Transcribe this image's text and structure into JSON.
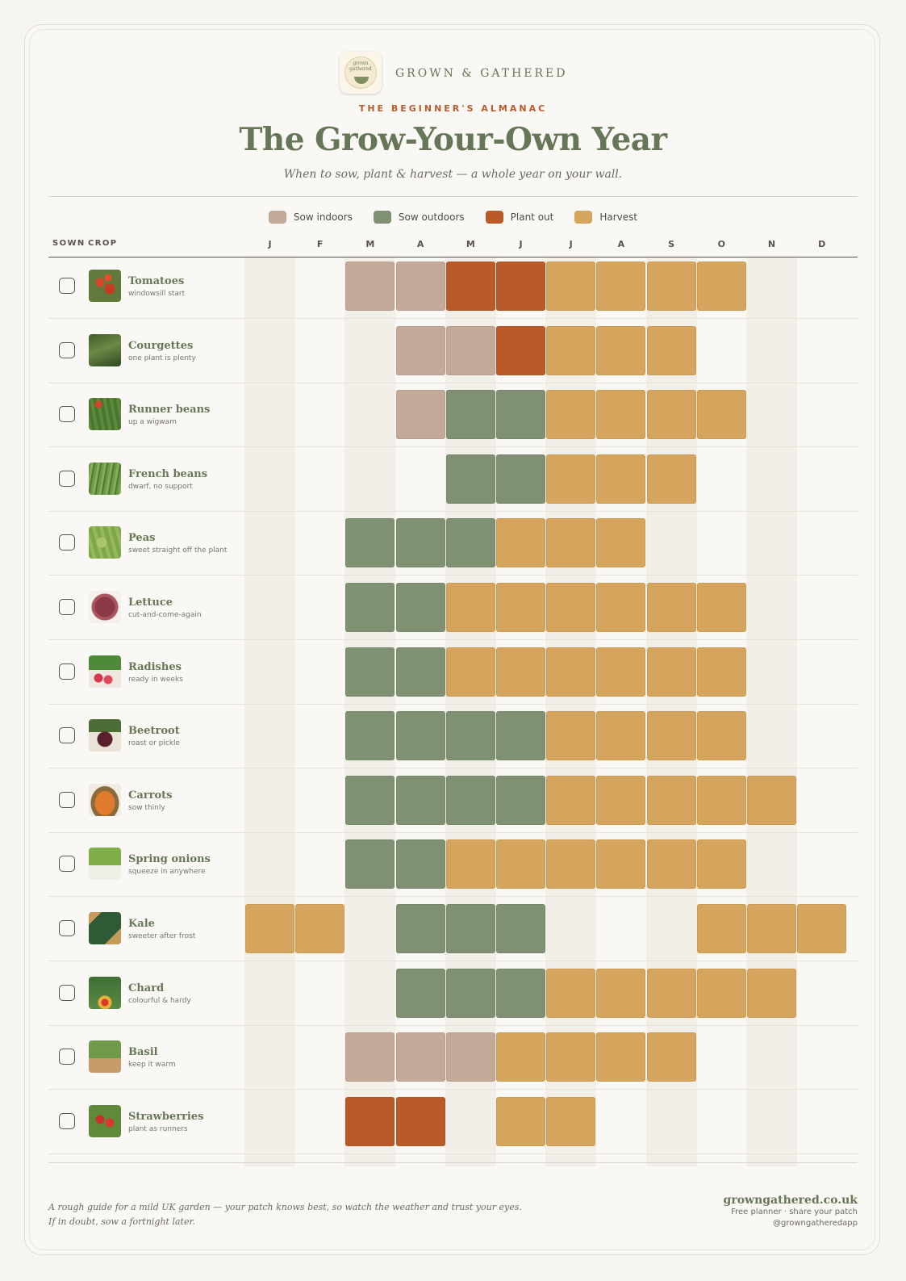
{
  "brand": {
    "name": "GROWN & GATHERED",
    "logo_text": "grown gathered",
    "logo_icon": "basket-icon"
  },
  "kicker": "THE BEGINNER'S ALMANAC",
  "title": "The Grow-Your-Own Year",
  "subtitle": "When to sow, plant & harvest — a whole year on your wall.",
  "legend": [
    {
      "key": "si",
      "label": "Sow indoors",
      "color": "#c4a898"
    },
    {
      "key": "so",
      "label": "Sow outdoors",
      "color": "#7f9172"
    },
    {
      "key": "po",
      "label": "Plant out",
      "color": "#bb5a29"
    },
    {
      "key": "h",
      "label": "Harvest",
      "color": "#d6a55d"
    }
  ],
  "columns": {
    "sown": "SOWN",
    "crop": "CROP"
  },
  "months": [
    "J",
    "F",
    "M",
    "A",
    "M",
    "J",
    "J",
    "A",
    "S",
    "O",
    "N",
    "D"
  ],
  "crops": [
    {
      "name": "Tomatoes",
      "note": "windowsill start",
      "icon": "tomatoes-icon",
      "checked": false,
      "months": [
        "",
        "",
        "si",
        "si",
        "po",
        "po",
        "h",
        "h",
        "h",
        "h",
        "",
        ""
      ]
    },
    {
      "name": "Courgettes",
      "note": "one plant is plenty",
      "icon": "courgettes-icon",
      "checked": false,
      "months": [
        "",
        "",
        "",
        "si",
        "si",
        "po",
        "h",
        "h",
        "h",
        "",
        "",
        ""
      ]
    },
    {
      "name": "Runner beans",
      "note": "up a wigwam",
      "icon": "runner-beans-icon",
      "checked": false,
      "months": [
        "",
        "",
        "",
        "si",
        "so",
        "so",
        "h",
        "h",
        "h",
        "h",
        "",
        ""
      ]
    },
    {
      "name": "French beans",
      "note": "dwarf, no support",
      "icon": "french-beans-icon",
      "checked": false,
      "months": [
        "",
        "",
        "",
        "",
        "so",
        "so",
        "h",
        "h",
        "h",
        "",
        "",
        ""
      ]
    },
    {
      "name": "Peas",
      "note": "sweet straight off the plant",
      "icon": "peas-icon",
      "checked": false,
      "months": [
        "",
        "",
        "so",
        "so",
        "so",
        "h",
        "h",
        "h",
        "",
        "",
        "",
        ""
      ]
    },
    {
      "name": "Lettuce",
      "note": "cut-and-come-again",
      "icon": "lettuce-icon",
      "checked": false,
      "months": [
        "",
        "",
        "so",
        "so",
        "h",
        "h",
        "h",
        "h",
        "h",
        "h",
        "",
        ""
      ]
    },
    {
      "name": "Radishes",
      "note": "ready in weeks",
      "icon": "radishes-icon",
      "checked": false,
      "months": [
        "",
        "",
        "so",
        "so",
        "h",
        "h",
        "h",
        "h",
        "h",
        "h",
        "",
        ""
      ]
    },
    {
      "name": "Beetroot",
      "note": "roast or pickle",
      "icon": "beetroot-icon",
      "checked": false,
      "months": [
        "",
        "",
        "so",
        "so",
        "so",
        "so",
        "h",
        "h",
        "h",
        "h",
        "",
        ""
      ]
    },
    {
      "name": "Carrots",
      "note": "sow thinly",
      "icon": "carrots-icon",
      "checked": false,
      "months": [
        "",
        "",
        "so",
        "so",
        "so",
        "so",
        "h",
        "h",
        "h",
        "h",
        "h",
        ""
      ]
    },
    {
      "name": "Spring onions",
      "note": "squeeze in anywhere",
      "icon": "spring-onions-icon",
      "checked": false,
      "months": [
        "",
        "",
        "so",
        "so",
        "h",
        "h",
        "h",
        "h",
        "h",
        "h",
        "",
        ""
      ]
    },
    {
      "name": "Kale",
      "note": "sweeter after frost",
      "icon": "kale-icon",
      "checked": false,
      "months": [
        "h",
        "h",
        "",
        "so",
        "so",
        "so",
        "",
        "",
        "",
        "h",
        "h",
        "h"
      ]
    },
    {
      "name": "Chard",
      "note": "colourful & hardy",
      "icon": "chard-icon",
      "checked": false,
      "months": [
        "",
        "",
        "",
        "so",
        "so",
        "so",
        "h",
        "h",
        "h",
        "h",
        "h",
        ""
      ]
    },
    {
      "name": "Basil",
      "note": "keep it warm",
      "icon": "basil-icon",
      "checked": false,
      "months": [
        "",
        "",
        "si",
        "si",
        "si",
        "h",
        "h",
        "h",
        "h",
        "",
        "",
        ""
      ]
    },
    {
      "name": "Strawberries",
      "note": "plant as runners",
      "icon": "strawberries-icon",
      "checked": false,
      "months": [
        "",
        "",
        "po",
        "po",
        "",
        "h",
        "h",
        "",
        "",
        "",
        "",
        ""
      ]
    }
  ],
  "footer": {
    "note_line1": "A rough guide for a mild UK garden — your patch knows best, so watch the weather and trust your eyes.",
    "note_line2": "If in doubt, sow a fortnight later.",
    "site": "growngathered.co.uk",
    "tagline": "Free planner · share your patch",
    "handle": "@growngatheredapp"
  }
}
